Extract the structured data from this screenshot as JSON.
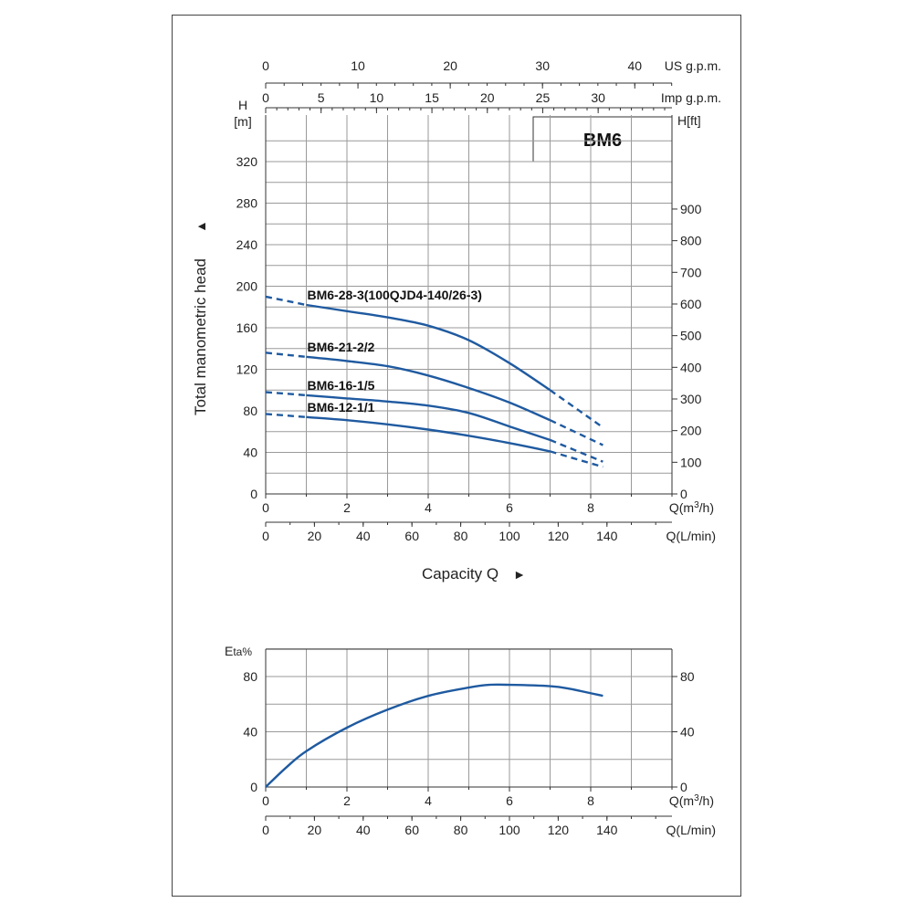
{
  "chart_data": [
    {
      "type": "line",
      "model": "BM6",
      "ylabel_left_unit": "H",
      "ylabel_left_unit2": "[m]",
      "ylabel_right_unit": "H[ft]",
      "ylabel_side": "Total manometric head",
      "ylabel_side_arrow": "▲",
      "xlabel": "Capacity Q",
      "xlabel_arrow": "►",
      "ylim": [
        0,
        360
      ],
      "xlim": [
        0,
        10
      ],
      "y_ticks": [
        0,
        40,
        80,
        120,
        160,
        200,
        240,
        280,
        320
      ],
      "y_ticks_ft": [
        0,
        100,
        200,
        300,
        400,
        500,
        600,
        700,
        800,
        900
      ],
      "top_axes": [
        {
          "unit": "US g.p.m.",
          "ticks": [
            0,
            10,
            20,
            30,
            40
          ],
          "per_m3h": 4.403
        },
        {
          "unit": "Imp g.p.m.",
          "ticks": [
            0,
            5,
            10,
            15,
            20,
            25,
            30
          ],
          "per_m3h": 3.666
        }
      ],
      "bottom_axes": [
        {
          "unit_prefix": "Q(",
          "unit_main": "m",
          "unit_sup": "3",
          "unit_suffix": "/h)",
          "ticks": [
            0,
            2,
            4,
            6,
            8
          ],
          "per_m3h": 1
        },
        {
          "unit": "Q(L/min)",
          "ticks": [
            0,
            20,
            40,
            60,
            80,
            100,
            120,
            140
          ],
          "per_m3h": 16.667
        }
      ],
      "series": [
        {
          "name": "BM6-28-3(100QJD4-140/26-3)",
          "dash_head": [
            [
              0,
              190
            ],
            [
              1,
              182
            ]
          ],
          "solid": [
            [
              1,
              182
            ],
            [
              2,
              176
            ],
            [
              3,
              170
            ],
            [
              4,
              162
            ],
            [
              5,
              148
            ],
            [
              6,
              126
            ],
            [
              7,
              100
            ]
          ],
          "dash_tail": [
            [
              7,
              100
            ],
            [
              8.3,
              64
            ]
          ]
        },
        {
          "name": "BM6-21-2/2",
          "dash_head": [
            [
              0,
              136
            ],
            [
              1,
              132
            ]
          ],
          "solid": [
            [
              1,
              132
            ],
            [
              2,
              128
            ],
            [
              3,
              123
            ],
            [
              4,
              114
            ],
            [
              5,
              102
            ],
            [
              6,
              88
            ],
            [
              7,
              71
            ]
          ],
          "dash_tail": [
            [
              7,
              71
            ],
            [
              8.3,
              47
            ]
          ]
        },
        {
          "name": "BM6-16-1/5",
          "dash_head": [
            [
              0,
              98
            ],
            [
              1,
              95
            ]
          ],
          "solid": [
            [
              1,
              95
            ],
            [
              2,
              92
            ],
            [
              3,
              89
            ],
            [
              4,
              85
            ],
            [
              5,
              78
            ],
            [
              6,
              65
            ],
            [
              7,
              52
            ]
          ],
          "dash_tail": [
            [
              7,
              52
            ],
            [
              8.3,
              31
            ]
          ]
        },
        {
          "name": "BM6-12-1/1",
          "dash_head": [
            [
              0,
              77
            ],
            [
              1,
              74
            ]
          ],
          "solid": [
            [
              1,
              74
            ],
            [
              2,
              71
            ],
            [
              3,
              67
            ],
            [
              4,
              62
            ],
            [
              5,
              56
            ],
            [
              6,
              49
            ],
            [
              7,
              41
            ]
          ],
          "dash_tail": [
            [
              7,
              41
            ],
            [
              8.3,
              26
            ]
          ]
        }
      ]
    },
    {
      "type": "line",
      "ylabel_main": "E",
      "ylabel_suffix": "ta%",
      "ylim": [
        0,
        100
      ],
      "xlim": [
        0,
        10
      ],
      "y_ticks": [
        0,
        40,
        80
      ],
      "y_ticks_right": [
        0,
        40,
        80
      ],
      "bottom_axes": [
        {
          "unit_prefix": "Q(",
          "unit_main": "m",
          "unit_sup": "3",
          "unit_suffix": "/h)",
          "ticks": [
            0,
            2,
            4,
            6,
            8
          ],
          "per_m3h": 1
        },
        {
          "unit": "Q(L/min)",
          "ticks": [
            0,
            20,
            40,
            60,
            80,
            100,
            120,
            140
          ],
          "per_m3h": 16.667
        }
      ],
      "series": [
        {
          "points": [
            [
              0,
              0
            ],
            [
              0.5,
              14
            ],
            [
              1,
              26
            ],
            [
              2,
              43
            ],
            [
              3,
              56
            ],
            [
              4,
              66
            ],
            [
              5,
              72
            ],
            [
              5.5,
              74
            ],
            [
              6,
              74
            ],
            [
              7,
              73
            ],
            [
              7.5,
              71
            ],
            [
              8.3,
              66
            ]
          ]
        }
      ]
    }
  ]
}
